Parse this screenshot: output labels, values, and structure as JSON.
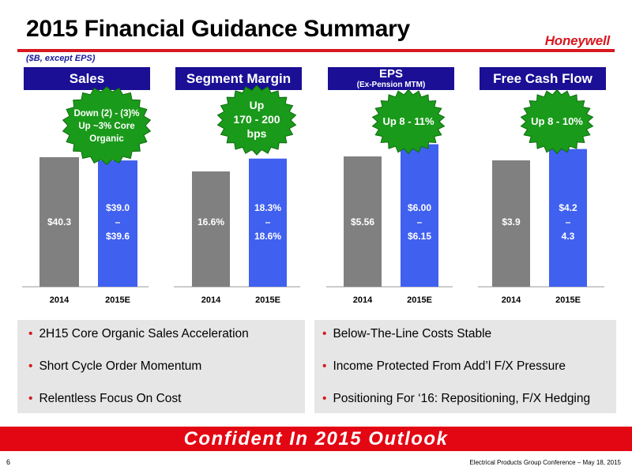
{
  "title": "2015 Financial Guidance Summary",
  "logo": "Honeywell",
  "units": "($B, except EPS)",
  "headers": {
    "sales": "Sales",
    "segment_margin": "Segment Margin",
    "eps": "EPS",
    "eps_sub": "(Ex-Pension MTM)",
    "fcf": "Free Cash Flow"
  },
  "colors": {
    "accent_red": "#e30613",
    "header_navy": "#1a0f95",
    "bar_2014": "#808080",
    "bar_2015": "#4060f0",
    "burst_green": "#1a9a1a"
  },
  "chart_data": [
    {
      "type": "bar",
      "title": "Sales",
      "categories": [
        "2014",
        "2015E"
      ],
      "values": [
        40.3,
        39.3
      ],
      "range_2015E": [
        39.0,
        39.6
      ],
      "data_labels": [
        "$40.3",
        "$39.0\n–\n$39.6"
      ],
      "callout": "Down (2) - (3)%\nUp ~3% Core\nOrganic"
    },
    {
      "type": "bar",
      "title": "Segment Margin",
      "categories": [
        "2014",
        "2015E"
      ],
      "values": [
        16.6,
        18.45
      ],
      "range_2015E": [
        18.3,
        18.6
      ],
      "data_labels": [
        "16.6%",
        "18.3%\n–\n18.6%"
      ],
      "callout": "Up\n170 - 200\nbps"
    },
    {
      "type": "bar",
      "title": "EPS",
      "subtitle": "(Ex-Pension MTM)",
      "categories": [
        "2014",
        "2015E"
      ],
      "values": [
        5.56,
        6.08
      ],
      "range_2015E": [
        6.0,
        6.15
      ],
      "data_labels": [
        "$5.56",
        "$6.00\n–\n$6.15"
      ],
      "callout": "Up 8 - 11%"
    },
    {
      "type": "bar",
      "title": "Free Cash Flow",
      "categories": [
        "2014",
        "2015E"
      ],
      "values": [
        3.9,
        4.25
      ],
      "range_2015E": [
        4.2,
        4.3
      ],
      "data_labels": [
        "$3.9",
        "$4.2\n–\n4.3"
      ],
      "callout": "Up 8 - 10%"
    }
  ],
  "bullets_left": [
    "2H15 Core Organic Sales Acceleration",
    "Short Cycle Order Momentum",
    "Relentless Focus On Cost"
  ],
  "bullets_right": [
    "Below-The-Line Costs Stable",
    "Income Protected From Add’l F/X Pressure",
    "Positioning For ‘16: Repositioning, F/X Hedging"
  ],
  "banner": "Confident In 2015 Outlook",
  "page_number": "6",
  "footer": "Electrical Products Group Conference – May 18, 2015"
}
